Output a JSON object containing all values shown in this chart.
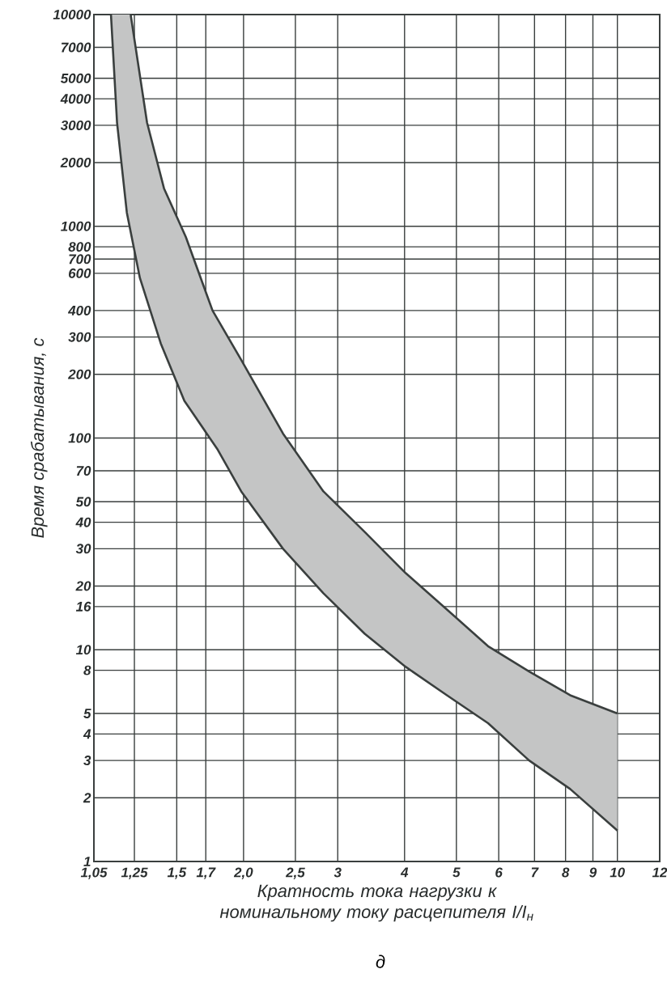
{
  "chart_data": {
    "type": "line",
    "xlabel": "Кратность тока нагрузки к номинальному току расцепителя I/I$_{н}$",
    "ylabel": "Время срабатывания, с",
    "annotations": [
      "д"
    ],
    "log": "xy",
    "grid": true,
    "marker": "none",
    "line_style": "solid",
    "xlim": [
      1.05,
      12
    ],
    "ylim": [
      1,
      10000
    ],
    "xticks": [
      {
        "value": 1.05,
        "label": "1,05"
      },
      {
        "value": 1.25,
        "label": "1,25"
      },
      {
        "value": 1.5,
        "label": "1,5"
      },
      {
        "value": 1.7,
        "label": "1,7"
      },
      {
        "value": 2.0,
        "label": "2,0"
      },
      {
        "value": 2.5,
        "label": "2,5"
      },
      3,
      4,
      5,
      6,
      7,
      8,
      9,
      10,
      12
    ],
    "yticks": [
      1,
      2,
      3,
      4,
      5,
      8,
      10,
      16,
      20,
      30,
      40,
      50,
      70,
      100,
      200,
      300,
      400,
      600,
      700,
      800,
      1000,
      2000,
      3000,
      4000,
      5000,
      7000,
      10000
    ],
    "series": [
      {
        "color": "#3a3f3e",
        "x": [
          1.23,
          1.32,
          1.42,
          1.56,
          1.75,
          1.98,
          2.37,
          2.82,
          3.37,
          4.02,
          4.8,
          5.73,
          6.84,
          8.16,
          10
        ],
        "values": [
          10000,
          3090,
          1510,
          890,
          400,
          234,
          105,
          56,
          36,
          23,
          15.5,
          10.4,
          7.9,
          6.1,
          5
        ]
      },
      {
        "color": "#3a3f3e",
        "x": [
          1.13,
          1.16,
          1.21,
          1.28,
          1.4,
          1.55,
          1.79,
          1.98,
          2.37,
          2.82,
          3.37,
          4.02,
          4.8,
          5.73,
          6.84,
          8.16,
          10
        ],
        "values": [
          10000,
          3090,
          1160,
          570,
          280,
          150,
          88,
          56,
          30,
          18.5,
          11.9,
          8.3,
          6.1,
          4.5,
          3.0,
          2.2,
          1.4
        ]
      }
    ]
  }
}
